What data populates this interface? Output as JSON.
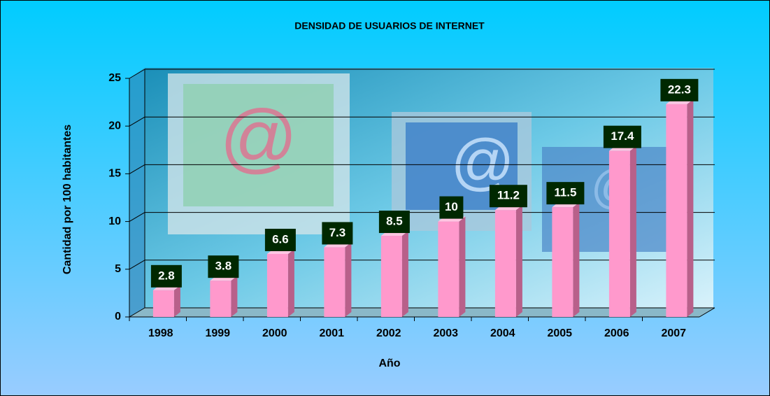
{
  "chart_data": {
    "type": "bar",
    "title": "DENSIDAD DE USUARIOS DE INTERNET",
    "x_label": "Año",
    "y_label": "Cantidad por 100 habitantes",
    "categories": [
      "1998",
      "1999",
      "2000",
      "2001",
      "2002",
      "2003",
      "2004",
      "2005",
      "2006",
      "2007"
    ],
    "values": [
      2.8,
      3.8,
      6.6,
      7.3,
      8.5,
      10,
      11.2,
      11.5,
      17.4,
      22.3
    ],
    "color": "#ff99cc",
    "ylim": [
      0,
      25
    ],
    "yticks": [
      0,
      5,
      10,
      15,
      20,
      25
    ],
    "grid": true
  }
}
